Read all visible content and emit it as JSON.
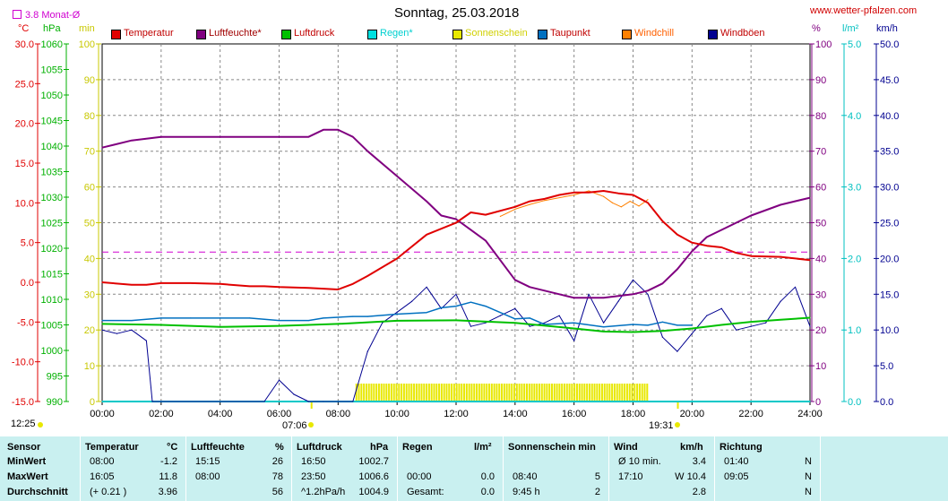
{
  "title": "Sonntag, 25.03.2018",
  "site": "www.wetter-pfalzen.com",
  "monat_label": "3.8 Monat-Ø",
  "axis_units": {
    "temp": "°C",
    "press": "hPa",
    "min": "min",
    "pct": "%",
    "rain": "l/m²",
    "wind": "km/h"
  },
  "legend": [
    {
      "label": "Temperatur",
      "color": "#e00000"
    },
    {
      "label": "Luftfeuchte*",
      "color": "#800080"
    },
    {
      "label": "Luftdruck",
      "color": "#00c000"
    },
    {
      "label": "Regen*",
      "color": "#00e0e0"
    },
    {
      "label": "Sonnenschein",
      "color": "#e8e800"
    },
    {
      "label": "Taupunkt",
      "color": "#0070c0"
    },
    {
      "label": "Windchill",
      "color": "#ff8000"
    },
    {
      "label": "Windböen",
      "color": "#000090"
    }
  ],
  "colors": {
    "temp": "#e00000",
    "hum": "#800080",
    "press": "#00c000",
    "rain": "#00c8c8",
    "sun": "#e8e800",
    "dew": "#0070c0",
    "chill": "#ff8000",
    "gust": "#000090",
    "monat": "#d000d0",
    "table_bg": "#c9f0f0"
  },
  "sunrise": "07:06",
  "sunset": "19:31",
  "update_time": "12:25",
  "chart_data": {
    "type": "line",
    "title": "Sonntag, 25.03.2018",
    "x_ticks": [
      "00:00",
      "02:00",
      "04:00",
      "06:00",
      "08:00",
      "10:00",
      "12:00",
      "14:00",
      "16:00",
      "18:00",
      "20:00",
      "22:00",
      "24:00"
    ],
    "xlim": [
      0,
      24
    ],
    "y_axes": {
      "temp": {
        "unit": "°C",
        "ylim": [
          -15,
          30
        ],
        "ticks": [
          "30.0",
          "25.0",
          "20.0",
          "15.0",
          "10.0",
          "5.0",
          "0.0",
          "-5.0",
          "-10.0",
          "-15.0"
        ]
      },
      "press": {
        "unit": "hPa",
        "ylim": [
          990,
          1060
        ],
        "ticks": [
          "1060",
          "1055",
          "1050",
          "1045",
          "1040",
          "1035",
          "1030",
          "1025",
          "1020",
          "1015",
          "1010",
          "1005",
          "1000",
          "995",
          "990"
        ]
      },
      "sun": {
        "unit": "min",
        "ylim": [
          0,
          100
        ],
        "ticks": [
          "100",
          "90",
          "80",
          "70",
          "60",
          "50",
          "40",
          "30",
          "20",
          "10",
          "0"
        ]
      },
      "hum": {
        "unit": "%",
        "ylim": [
          0,
          100
        ],
        "ticks": [
          "100",
          "90",
          "80",
          "70",
          "60",
          "50",
          "40",
          "30",
          "20",
          "10",
          "0"
        ]
      },
      "rain": {
        "unit": "l/m²",
        "ylim": [
          0,
          5
        ],
        "ticks": [
          "5.0",
          "4.0",
          "3.0",
          "2.0",
          "1.0",
          "0.0"
        ]
      },
      "wind": {
        "unit": "km/h",
        "ylim": [
          0,
          50
        ],
        "ticks": [
          "50.0",
          "45.0",
          "40.0",
          "35.0",
          "30.0",
          "25.0",
          "20.0",
          "15.0",
          "10.0",
          "5.0",
          "0.0"
        ]
      }
    },
    "monat_avg_temp": 3.8,
    "series": [
      {
        "name": "Temperatur",
        "axis": "temp",
        "x": [
          0,
          1,
          1.5,
          2,
          3,
          4,
          5,
          5.5,
          6,
          7,
          7.5,
          8,
          8.5,
          9,
          10,
          11,
          12,
          12.5,
          13,
          14,
          14.5,
          15,
          15.5,
          16,
          16.5,
          17,
          17.5,
          18,
          18.5,
          19,
          19.5,
          20,
          20.5,
          21,
          21.5,
          22,
          23,
          24
        ],
        "y": [
          0,
          -0.3,
          -0.3,
          -0.1,
          -0.1,
          -0.2,
          -0.5,
          -0.5,
          -0.6,
          -0.7,
          -0.8,
          -0.9,
          -0.2,
          0.8,
          3,
          6,
          7.5,
          8.8,
          8.5,
          9.5,
          10.2,
          10.5,
          11,
          11.3,
          11.3,
          11.5,
          11.2,
          11,
          10,
          7.7,
          6,
          5,
          4.6,
          4.4,
          3.7,
          3.3,
          3.2,
          2.8
        ]
      },
      {
        "name": "Luftfeuchte*",
        "axis": "hum",
        "x": [
          0,
          1,
          2,
          3,
          4,
          5,
          6,
          7,
          7.5,
          8,
          8.5,
          9,
          10,
          11,
          11.5,
          12,
          13,
          14,
          14.5,
          15,
          15.5,
          16,
          17,
          18,
          18.5,
          19,
          19.5,
          20,
          20.5,
          21,
          22,
          23,
          24
        ],
        "y": [
          71,
          73,
          74,
          74,
          74,
          74,
          74,
          74,
          76,
          76,
          74,
          70,
          63,
          56,
          52,
          51,
          45,
          34,
          32,
          31,
          30,
          29,
          29,
          30,
          31,
          33,
          37,
          42,
          46,
          48,
          52,
          55,
          57
        ]
      },
      {
        "name": "Luftdruck",
        "axis": "press",
        "x": [
          0,
          2,
          4,
          6,
          8,
          10,
          12,
          14,
          16,
          17,
          18,
          19,
          20,
          21,
          22,
          23,
          24
        ],
        "y": [
          1005.2,
          1005.0,
          1004.6,
          1004.8,
          1005.2,
          1005.8,
          1005.9,
          1005.4,
          1004.3,
          1003.7,
          1003.6,
          1003.8,
          1004.3,
          1005.0,
          1005.6,
          1006.0,
          1006.4
        ]
      },
      {
        "name": "Taupunkt",
        "axis": "temp",
        "x": [
          0,
          1,
          2,
          3,
          4,
          5,
          6,
          7,
          7.5,
          8,
          8.5,
          9,
          10,
          11,
          11.5,
          12,
          12.5,
          13,
          14,
          14.5,
          15,
          16,
          17,
          18,
          18.5,
          19,
          19.5,
          20
        ],
        "y": [
          -4.8,
          -4.8,
          -4.5,
          -4.5,
          -4.5,
          -4.5,
          -4.8,
          -4.8,
          -4.5,
          -4.4,
          -4.3,
          -4.3,
          -4.0,
          -3.8,
          -3.2,
          -3.0,
          -2.5,
          -3.0,
          -4.6,
          -4.5,
          -5.3,
          -5.1,
          -5.6,
          -5.3,
          -5.4,
          -5.0,
          -5.4,
          -5.4
        ]
      },
      {
        "name": "Windchill",
        "axis": "temp",
        "x": [
          13.5,
          14,
          14.5,
          15,
          16,
          16.5,
          17,
          17.3,
          17.6,
          17.9,
          18.2,
          18.5
        ],
        "y": [
          8.3,
          9.2,
          9.8,
          10.3,
          11.0,
          11.5,
          10.8,
          10.0,
          9.5,
          10.2,
          9.6,
          10.4
        ]
      },
      {
        "name": "Windböen",
        "axis": "wind",
        "x": [
          0,
          0.5,
          1,
          1.5,
          1.7,
          2,
          5.5,
          6,
          6.5,
          7,
          7.5,
          8,
          8.5,
          9,
          9.5,
          10,
          10.5,
          11,
          11.5,
          12,
          12.5,
          13,
          13.5,
          14,
          14.5,
          15,
          15.5,
          16,
          16.5,
          17,
          17.5,
          18,
          18.5,
          19,
          19.5,
          20,
          20.5,
          21,
          21.5,
          22,
          22.5,
          23,
          23.5,
          24
        ],
        "y": [
          10,
          9.5,
          10,
          8.5,
          0,
          0,
          0,
          3,
          1,
          0,
          0,
          0,
          0,
          7,
          11,
          12.5,
          14,
          16,
          13,
          15,
          10.5,
          11,
          12,
          13,
          10.5,
          11,
          12,
          8.5,
          15,
          11,
          14,
          17,
          15,
          9,
          7,
          9.5,
          12,
          13,
          10,
          10.5,
          11,
          14,
          16,
          10.5
        ]
      },
      {
        "name": "Sonnenschein",
        "axis": "sun",
        "x": [
          0,
          8.5,
          8.6,
          18.5,
          18.6,
          24
        ],
        "y": [
          0,
          0,
          5,
          5,
          0,
          0
        ]
      },
      {
        "name": "Regen*",
        "axis": "rain",
        "x": [
          0,
          24
        ],
        "y": [
          0,
          0
        ]
      }
    ]
  },
  "table": {
    "headers": {
      "sensor": "Sensor",
      "temp": "Temperatur",
      "temp_u": "°C",
      "hum": "Luftfeuchte",
      "hum_u": "%",
      "press": "Luftdruck",
      "press_u": "hPa",
      "rain": "Regen",
      "rain_u": "l/m²",
      "sun": "Sonnenschein min",
      "wind": "Wind",
      "wind_u": "km/h",
      "dir": "Richtung"
    },
    "rows": [
      {
        "label": "MinWert",
        "temp_t": "08:00",
        "temp_v": "-1.2",
        "hum_t": "15:15",
        "hum_v": "26",
        "press_t": "16:50",
        "press_v": "1002.7",
        "rain_t": "",
        "rain_v": "",
        "sun_t": "",
        "sun_v": "",
        "wind_t": "Ø 10 min.",
        "wind_v": "3.4",
        "dir_t": "01:40",
        "dir_v": "N"
      },
      {
        "label": "MaxWert",
        "temp_t": "16:05",
        "temp_v": "11.8",
        "hum_t": "08:00",
        "hum_v": "78",
        "press_t": "23:50",
        "press_v": "1006.6",
        "rain_t": "00:00",
        "rain_v": "0.0",
        "sun_t": "08:40",
        "sun_v": "5",
        "wind_t": "17:10",
        "wind_v": "W 10.4",
        "dir_t": "09:05",
        "dir_v": "N"
      },
      {
        "label": "Durchschnitt",
        "temp_t": "(+ 0.21 )",
        "temp_v": "3.96",
        "hum_t": "",
        "hum_v": "56",
        "press_t": "^1.2hPa/h",
        "press_v": "1004.9",
        "rain_t": "Gesamt:",
        "rain_v": "0.0",
        "sun_t": "9:45 h",
        "sun_v": "2",
        "wind_t": "",
        "wind_v": "2.8",
        "dir_t": "",
        "dir_v": "N"
      }
    ]
  }
}
